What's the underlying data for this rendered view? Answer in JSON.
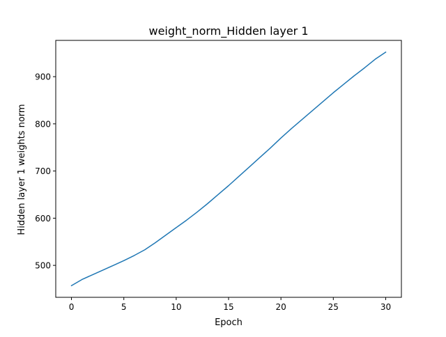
{
  "chart_data": {
    "type": "line",
    "title": "weight_norm_Hidden layer 1",
    "xlabel": "Epoch",
    "ylabel": "Hidden layer 1 weights norm",
    "xlim": [
      -1.5,
      31.5
    ],
    "ylim": [
      432.3,
      976.9
    ],
    "x_ticks": [
      0,
      5,
      10,
      15,
      20,
      25,
      30
    ],
    "y_ticks": [
      500,
      600,
      700,
      800,
      900
    ],
    "grid": false,
    "legend": "none",
    "series": [
      {
        "color": "#1f77b4",
        "x": [
          0,
          1,
          2,
          3,
          4,
          5,
          6,
          7,
          8,
          9,
          10,
          11,
          12,
          13,
          14,
          15,
          16,
          17,
          18,
          19,
          20,
          21,
          22,
          23,
          24,
          25,
          26,
          27,
          28,
          29,
          30
        ],
        "y": [
          457,
          470,
          480,
          490,
          500,
          510,
          521,
          533,
          548,
          564,
          580,
          596,
          613,
          631,
          650,
          669,
          689,
          709,
          729,
          749,
          770,
          790,
          809,
          828,
          847,
          866,
          884,
          902,
          919,
          937,
          952
        ]
      }
    ]
  }
}
